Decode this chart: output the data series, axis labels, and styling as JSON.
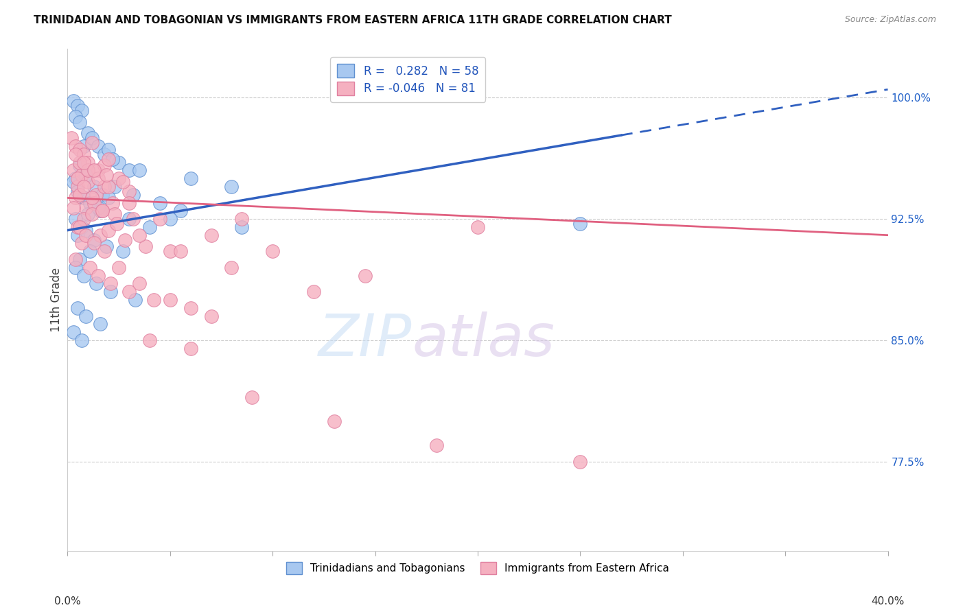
{
  "title": "TRINIDADIAN AND TOBAGONIAN VS IMMIGRANTS FROM EASTERN AFRICA 11TH GRADE CORRELATION CHART",
  "source": "Source: ZipAtlas.com",
  "ylabel": "11th Grade",
  "ylabel_right_ticks": [
    77.5,
    85.0,
    92.5,
    100.0
  ],
  "xmin": 0.0,
  "xmax": 40.0,
  "ymin": 72.0,
  "ymax": 103.0,
  "blue_R": 0.282,
  "blue_N": 58,
  "pink_R": -0.046,
  "pink_N": 81,
  "blue_label": "Trinidadians and Tobagonians",
  "pink_label": "Immigrants from Eastern Africa",
  "blue_color": "#a8c8f0",
  "pink_color": "#f5b0c0",
  "blue_edge_color": "#6090d0",
  "pink_edge_color": "#e080a0",
  "blue_line_color": "#3060c0",
  "pink_line_color": "#e06080",
  "blue_line_y0": 91.8,
  "blue_line_y1": 100.5,
  "pink_line_y0": 93.8,
  "pink_line_y1": 91.5,
  "dashed_start_x": 27.0,
  "watermark_zip": "ZIP",
  "watermark_atlas": "atlas",
  "blue_scatter_x": [
    0.3,
    0.5,
    0.7,
    0.4,
    0.6,
    0.8,
    1.0,
    1.2,
    1.5,
    1.8,
    2.0,
    2.5,
    3.0,
    0.4,
    0.6,
    0.9,
    1.3,
    1.7,
    2.2,
    3.5,
    0.3,
    0.5,
    0.8,
    1.1,
    1.6,
    2.3,
    3.2,
    4.5,
    6.0,
    8.0,
    0.4,
    0.7,
    1.0,
    1.5,
    2.0,
    3.0,
    4.0,
    5.5,
    0.5,
    0.9,
    1.3,
    1.9,
    2.7,
    0.6,
    1.1,
    0.4,
    0.8,
    1.4,
    2.1,
    3.3,
    0.5,
    0.9,
    1.6,
    0.3,
    0.7,
    5.0,
    8.5,
    25.0
  ],
  "blue_scatter_y": [
    99.8,
    99.5,
    99.2,
    98.8,
    98.5,
    97.0,
    97.8,
    97.5,
    97.0,
    96.5,
    96.8,
    96.0,
    95.5,
    95.0,
    95.8,
    95.2,
    94.5,
    94.0,
    96.2,
    95.5,
    94.8,
    94.2,
    93.8,
    93.5,
    93.0,
    94.5,
    94.0,
    93.5,
    95.0,
    94.5,
    92.5,
    92.0,
    92.8,
    93.2,
    93.8,
    92.5,
    92.0,
    93.0,
    91.5,
    91.8,
    91.2,
    90.8,
    90.5,
    90.0,
    90.5,
    89.5,
    89.0,
    88.5,
    88.0,
    87.5,
    87.0,
    86.5,
    86.0,
    85.5,
    85.0,
    92.5,
    92.0,
    92.2
  ],
  "pink_scatter_x": [
    0.2,
    0.4,
    0.6,
    0.8,
    1.0,
    1.2,
    1.5,
    1.8,
    2.0,
    2.5,
    0.3,
    0.5,
    0.7,
    1.0,
    1.4,
    1.8,
    2.2,
    3.0,
    0.4,
    0.6,
    0.9,
    1.3,
    1.7,
    2.3,
    3.2,
    0.5,
    0.8,
    1.2,
    1.6,
    2.0,
    2.8,
    3.8,
    5.0,
    0.4,
    0.7,
    1.1,
    1.5,
    2.1,
    3.0,
    4.2,
    6.0,
    8.5,
    0.3,
    0.6,
    0.9,
    1.3,
    1.8,
    2.5,
    3.5,
    5.0,
    7.0,
    0.5,
    0.8,
    1.2,
    1.7,
    2.4,
    3.5,
    5.5,
    8.0,
    12.0,
    0.6,
    1.0,
    1.5,
    2.0,
    3.0,
    4.5,
    7.0,
    10.0,
    14.5,
    20.0,
    0.4,
    0.8,
    1.3,
    1.9,
    2.7,
    4.0,
    6.0,
    9.0,
    13.0,
    18.0,
    25.0
  ],
  "pink_scatter_y": [
    97.5,
    97.0,
    96.8,
    96.5,
    96.0,
    97.2,
    95.5,
    95.8,
    96.2,
    95.0,
    95.5,
    94.5,
    95.2,
    94.8,
    94.0,
    94.5,
    93.5,
    94.2,
    93.8,
    94.0,
    93.2,
    93.5,
    93.0,
    92.8,
    92.5,
    92.0,
    92.5,
    92.8,
    91.5,
    91.8,
    91.2,
    90.8,
    90.5,
    90.0,
    91.0,
    89.5,
    89.0,
    88.5,
    88.0,
    87.5,
    87.0,
    92.5,
    93.2,
    92.0,
    91.5,
    91.0,
    90.5,
    89.5,
    88.5,
    87.5,
    86.5,
    95.0,
    94.5,
    93.8,
    93.0,
    92.2,
    91.5,
    90.5,
    89.5,
    88.0,
    96.0,
    95.5,
    95.0,
    94.5,
    93.5,
    92.5,
    91.5,
    90.5,
    89.0,
    92.0,
    96.5,
    96.0,
    95.5,
    95.2,
    94.8,
    85.0,
    84.5,
    81.5,
    80.0,
    78.5,
    77.5
  ]
}
